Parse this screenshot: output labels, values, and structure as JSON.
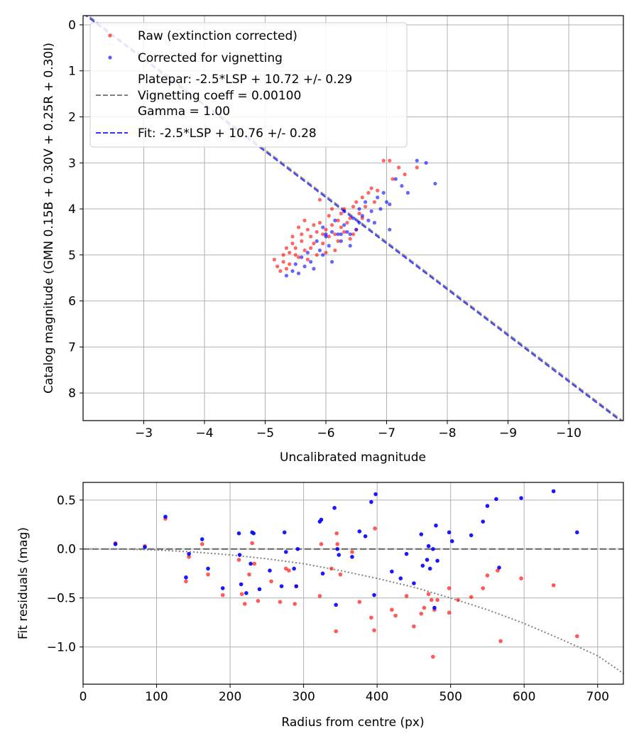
{
  "chart_data": [
    {
      "type": "scatter",
      "xlabel": "Uncalibrated magnitude",
      "ylabel": "Catalog magnitude (GMN 0.15B + 0.30V + 0.25R + 0.30I)",
      "xlim": [
        -2.0,
        -10.9
      ],
      "ylim": [
        8.6,
        -0.2
      ],
      "x_inverted": true,
      "y_inverted": true,
      "grid": true,
      "xticks": [
        -3,
        -4,
        -5,
        -6,
        -7,
        -8,
        -9,
        -10
      ],
      "xtick_labels": [
        "−3",
        "−4",
        "−5",
        "−6",
        "−7",
        "−8",
        "−9",
        "−10"
      ],
      "yticks": [
        0,
        1,
        2,
        3,
        4,
        5,
        6,
        7,
        8
      ],
      "ytick_labels": [
        "0",
        "1",
        "2",
        "3",
        "4",
        "5",
        "6",
        "7",
        "8"
      ],
      "legend_position": "top-left",
      "legend": [
        {
          "label": "Raw (extinction corrected)",
          "color": "#ff0000",
          "marker": "dot"
        },
        {
          "label": "Corrected for vignetting",
          "color": "#0000ff",
          "marker": "dot"
        },
        {
          "label_lines": [
            "Platepar: -2.5*LSP + 10.72 +/- 0.29",
            "Vignetting coeff = 0.00100",
            "Gamma = 1.00"
          ],
          "color": "#808080",
          "marker": "dashed-line"
        },
        {
          "label": "Fit: -2.5*LSP + 10.76 +/- 0.28",
          "color": "#3333ff",
          "marker": "dashed-line"
        }
      ],
      "series": [
        {
          "name": "Raw (extinction corrected)",
          "color": "#ff0000",
          "points": [
            [
              -5.15,
              5.1
            ],
            [
              -5.2,
              5.25
            ],
            [
              -5.25,
              5.35
            ],
            [
              -5.3,
              5.15
            ],
            [
              -5.3,
              5.0
            ],
            [
              -5.35,
              4.85
            ],
            [
              -5.35,
              5.3
            ],
            [
              -5.4,
              4.95
            ],
            [
              -5.4,
              5.2
            ],
            [
              -5.45,
              4.6
            ],
            [
              -5.45,
              4.75
            ],
            [
              -5.5,
              5.0
            ],
            [
              -5.5,
              4.85
            ],
            [
              -5.55,
              4.4
            ],
            [
              -5.55,
              5.05
            ],
            [
              -5.6,
              4.55
            ],
            [
              -5.6,
              4.7
            ],
            [
              -5.65,
              4.25
            ],
            [
              -5.65,
              4.9
            ],
            [
              -5.7,
              4.45
            ],
            [
              -5.7,
              5.1
            ],
            [
              -5.75,
              4.6
            ],
            [
              -5.8,
              4.35
            ],
            [
              -5.8,
              4.75
            ],
            [
              -5.85,
              4.5
            ],
            [
              -5.85,
              5.0
            ],
            [
              -5.9,
              3.8
            ],
            [
              -5.9,
              4.3
            ],
            [
              -5.95,
              4.55
            ],
            [
              -5.95,
              4.75
            ],
            [
              -6.0,
              4.45
            ],
            [
              -6.05,
              4.15
            ],
            [
              -6.05,
              4.6
            ],
            [
              -6.1,
              4.0
            ],
            [
              -6.1,
              4.35
            ],
            [
              -6.15,
              4.55
            ],
            [
              -6.2,
              4.25
            ],
            [
              -6.2,
              4.7
            ],
            [
              -6.25,
              4.1
            ],
            [
              -6.25,
              4.4
            ],
            [
              -6.3,
              4.0
            ],
            [
              -6.3,
              4.5
            ],
            [
              -6.35,
              4.3
            ],
            [
              -6.4,
              4.2
            ],
            [
              -6.4,
              4.65
            ],
            [
              -6.45,
              3.95
            ],
            [
              -6.5,
              3.85
            ],
            [
              -6.5,
              4.45
            ],
            [
              -6.55,
              4.1
            ],
            [
              -6.6,
              3.75
            ],
            [
              -6.6,
              4.2
            ],
            [
              -6.65,
              3.95
            ],
            [
              -6.7,
              3.65
            ],
            [
              -6.75,
              3.55
            ],
            [
              -6.8,
              3.85
            ],
            [
              -6.85,
              3.6
            ],
            [
              -6.95,
              2.95
            ],
            [
              -7.05,
              2.95
            ],
            [
              -7.1,
              3.35
            ],
            [
              -7.2,
              3.1
            ],
            [
              -7.3,
              3.25
            ],
            [
              -7.5,
              3.1
            ],
            [
              -6.15,
              4.9
            ],
            [
              -6.0,
              4.95
            ],
            [
              -5.75,
              4.85
            ],
            [
              -6.45,
              4.55
            ]
          ]
        },
        {
          "name": "Corrected for vignetting",
          "color": "#0000ff",
          "points": [
            [
              -5.35,
              5.45
            ],
            [
              -5.45,
              5.35
            ],
            [
              -5.5,
              5.2
            ],
            [
              -5.55,
              5.4
            ],
            [
              -5.6,
              5.05
            ],
            [
              -5.65,
              5.25
            ],
            [
              -5.7,
              4.95
            ],
            [
              -5.75,
              5.15
            ],
            [
              -5.8,
              5.3
            ],
            [
              -5.85,
              4.7
            ],
            [
              -5.9,
              4.9
            ],
            [
              -5.95,
              4.4
            ],
            [
              -5.95,
              5.0
            ],
            [
              -6.0,
              4.6
            ],
            [
              -6.05,
              4.8
            ],
            [
              -6.1,
              4.5
            ],
            [
              -6.1,
              5.15
            ],
            [
              -6.15,
              4.25
            ],
            [
              -6.2,
              4.55
            ],
            [
              -6.25,
              4.7
            ],
            [
              -6.3,
              4.35
            ],
            [
              -6.3,
              4.05
            ],
            [
              -6.35,
              4.5
            ],
            [
              -6.4,
              4.8
            ],
            [
              -6.45,
              4.2
            ],
            [
              -6.5,
              4.45
            ],
            [
              -6.55,
              4.0
            ],
            [
              -6.55,
              4.3
            ],
            [
              -6.6,
              4.15
            ],
            [
              -6.65,
              3.85
            ],
            [
              -6.7,
              4.25
            ],
            [
              -6.75,
              4.05
            ],
            [
              -6.8,
              4.3
            ],
            [
              -6.85,
              3.75
            ],
            [
              -6.9,
              4.0
            ],
            [
              -6.95,
              3.65
            ],
            [
              -7.0,
              3.85
            ],
            [
              -7.05,
              3.9
            ],
            [
              -7.05,
              4.45
            ],
            [
              -7.15,
              3.35
            ],
            [
              -7.25,
              3.5
            ],
            [
              -7.35,
              3.65
            ],
            [
              -7.5,
              2.95
            ],
            [
              -7.65,
              3.0
            ],
            [
              -7.8,
              3.45
            ],
            [
              -6.25,
              4.55
            ],
            [
              -6.4,
              4.55
            ],
            [
              -6.0,
              4.55
            ]
          ]
        },
        {
          "name": "Platepar: -2.5*LSP + 10.72 +/- 0.29",
          "color": "#808080",
          "line": {
            "slope": -1.0,
            "intercept": -2.28
          }
        },
        {
          "name": "Fit: -2.5*LSP + 10.76 +/- 0.28",
          "color": "#3333ff",
          "line": {
            "slope": -1.0,
            "intercept": -2.25
          }
        }
      ]
    },
    {
      "type": "scatter",
      "xlabel": "Radius from centre (px)",
      "ylabel": "Fit residuals (mag)",
      "xlim": [
        0,
        735
      ],
      "ylim": [
        -1.38,
        0.68
      ],
      "grid": true,
      "xticks": [
        0,
        100,
        200,
        300,
        400,
        500,
        600,
        700
      ],
      "xtick_labels": [
        "0",
        "100",
        "200",
        "300",
        "400",
        "500",
        "600",
        "700"
      ],
      "yticks": [
        0.5,
        0.0,
        -0.5,
        -1.0
      ],
      "ytick_labels": [
        "0.5",
        "0.0",
        "−0.5",
        "−1.0"
      ],
      "series": [
        {
          "name": "Raw residuals",
          "color": "#ff0000",
          "points": [
            [
              44,
              0.06
            ],
            [
              84,
              0.03
            ],
            [
              112,
              0.31
            ],
            [
              140,
              -0.33
            ],
            [
              144,
              -0.08
            ],
            [
              162,
              0.05
            ],
            [
              170,
              -0.26
            ],
            [
              190,
              -0.47
            ],
            [
              212,
              -0.11
            ],
            [
              216,
              -0.46
            ],
            [
              220,
              -0.56
            ],
            [
              226,
              -0.26
            ],
            [
              230,
              0.06
            ],
            [
              233,
              -0.15
            ],
            [
              238,
              -0.53
            ],
            [
              256,
              -0.33
            ],
            [
              268,
              -0.54
            ],
            [
              276,
              -0.2
            ],
            [
              280,
              -0.22
            ],
            [
              288,
              -0.56
            ],
            [
              290,
              -0.38
            ],
            [
              322,
              -0.48
            ],
            [
              324,
              0.05
            ],
            [
              338,
              -0.2
            ],
            [
              344,
              -0.84
            ],
            [
              345,
              0.16
            ],
            [
              346,
              0.05
            ],
            [
              350,
              -0.26
            ],
            [
              366,
              -0.03
            ],
            [
              376,
              -0.54
            ],
            [
              392,
              -0.7
            ],
            [
              396,
              -0.83
            ],
            [
              397,
              0.21
            ],
            [
              420,
              -0.62
            ],
            [
              425,
              -0.68
            ],
            [
              440,
              -0.48
            ],
            [
              450,
              -0.79
            ],
            [
              460,
              -0.66
            ],
            [
              464,
              -0.6
            ],
            [
              470,
              -0.46
            ],
            [
              474,
              -0.52
            ],
            [
              476,
              -1.1
            ],
            [
              478,
              -0.62
            ],
            [
              482,
              -0.52
            ],
            [
              498,
              -0.4
            ],
            [
              498,
              -0.65
            ],
            [
              510,
              -0.52
            ],
            [
              528,
              -0.49
            ],
            [
              544,
              -0.4
            ],
            [
              550,
              -0.27
            ],
            [
              564,
              -0.22
            ],
            [
              568,
              -0.94
            ],
            [
              596,
              -0.3
            ],
            [
              640,
              -0.37
            ],
            [
              672,
              -0.89
            ]
          ]
        },
        {
          "name": "Corrected residuals",
          "color": "#0000ff",
          "points": [
            [
              44,
              0.05
            ],
            [
              84,
              0.02
            ],
            [
              112,
              0.33
            ],
            [
              140,
              -0.29
            ],
            [
              144,
              -0.05
            ],
            [
              162,
              0.1
            ],
            [
              170,
              -0.2
            ],
            [
              190,
              -0.4
            ],
            [
              212,
              0.16
            ],
            [
              213,
              -0.06
            ],
            [
              215,
              -0.36
            ],
            [
              222,
              -0.45
            ],
            [
              228,
              -0.15
            ],
            [
              230,
              0.17
            ],
            [
              232,
              0.16
            ],
            [
              240,
              -0.41
            ],
            [
              254,
              -0.22
            ],
            [
              270,
              -0.38
            ],
            [
              274,
              0.17
            ],
            [
              276,
              -0.03
            ],
            [
              287,
              -0.2
            ],
            [
              290,
              -0.38
            ],
            [
              292,
              0.0
            ],
            [
              322,
              0.28
            ],
            [
              324,
              0.3
            ],
            [
              326,
              -0.25
            ],
            [
              342,
              0.42
            ],
            [
              344,
              -0.57
            ],
            [
              346,
              0.0
            ],
            [
              348,
              -0.06
            ],
            [
              366,
              -0.08
            ],
            [
              376,
              0.18
            ],
            [
              384,
              0.13
            ],
            [
              392,
              0.48
            ],
            [
              396,
              -0.47
            ],
            [
              398,
              0.56
            ],
            [
              420,
              -0.23
            ],
            [
              432,
              -0.3
            ],
            [
              440,
              -0.05
            ],
            [
              450,
              -0.35
            ],
            [
              460,
              0.15
            ],
            [
              462,
              -0.17
            ],
            [
              468,
              -0.11
            ],
            [
              470,
              0.03
            ],
            [
              472,
              -0.2
            ],
            [
              476,
              0.0
            ],
            [
              478,
              -0.6
            ],
            [
              480,
              0.24
            ],
            [
              482,
              -0.12
            ],
            [
              498,
              0.17
            ],
            [
              502,
              0.08
            ],
            [
              528,
              0.14
            ],
            [
              544,
              0.28
            ],
            [
              550,
              0.44
            ],
            [
              562,
              0.51
            ],
            [
              566,
              -0.19
            ],
            [
              596,
              0.52
            ],
            [
              640,
              0.59
            ],
            [
              672,
              0.17
            ]
          ]
        },
        {
          "name": "Zero line",
          "color": "#606060",
          "line_y": 0.0,
          "style": "dashed"
        },
        {
          "name": "Vignetting curve",
          "color": "#808080",
          "style": "dotted",
          "x": [
            0,
            50,
            100,
            150,
            200,
            250,
            300,
            350,
            400,
            450,
            500,
            550,
            600,
            650,
            700,
            735
          ],
          "values": [
            0.0,
            0.0,
            -0.01,
            -0.03,
            -0.06,
            -0.1,
            -0.15,
            -0.22,
            -0.3,
            -0.39,
            -0.5,
            -0.62,
            -0.76,
            -0.92,
            -1.09,
            -1.27
          ]
        }
      ]
    }
  ]
}
